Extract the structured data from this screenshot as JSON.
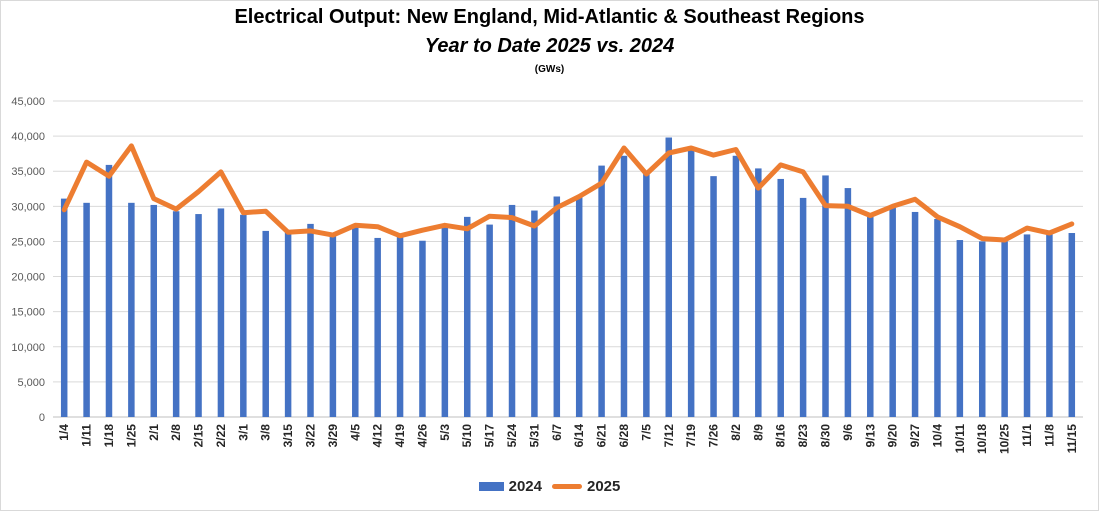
{
  "titles": {
    "main": "Electrical Output:  New England, Mid-Atlantic & Southeast Regions",
    "sub": "Year to Date 2025 vs. 2024",
    "unit": "(GWs)"
  },
  "colors": {
    "series_2024": "#4472C4",
    "series_2025": "#ED7D31",
    "grid": "#d9d9d9"
  },
  "chart_data": {
    "type": "bar",
    "title": "Electrical Output:  New England, Mid-Atlantic & Southeast Regions",
    "subtitle": "Year to Date 2025 vs. 2024",
    "ylabel": "(GWs)",
    "ylim": [
      0,
      45000
    ],
    "yticks": [
      0,
      5000,
      10000,
      15000,
      20000,
      25000,
      30000,
      35000,
      40000,
      45000
    ],
    "ytick_labels": [
      "0",
      "5,000",
      "10,000",
      "15,000",
      "20,000",
      "25,000",
      "30,000",
      "35,000",
      "40,000",
      "45,000"
    ],
    "grid": true,
    "legend_position": "bottom",
    "categories": [
      "1/4",
      "1/11",
      "1/18",
      "1/25",
      "2/1",
      "2/8",
      "2/15",
      "2/22",
      "3/1",
      "3/8",
      "3/15",
      "3/22",
      "3/29",
      "4/5",
      "4/12",
      "4/19",
      "4/26",
      "5/3",
      "5/10",
      "5/17",
      "5/24",
      "5/31",
      "6/7",
      "6/14",
      "6/21",
      "6/28",
      "7/5",
      "7/12",
      "7/19",
      "7/26",
      "8/2",
      "8/9",
      "8/16",
      "8/23",
      "8/30",
      "9/6",
      "9/13",
      "9/20",
      "9/27",
      "10/4",
      "10/11",
      "10/18",
      "10/25",
      "11/1",
      "11/8",
      "11/15"
    ],
    "series": [
      {
        "name": "2024",
        "type": "bar",
        "values": [
          31100,
          30500,
          35900,
          30500,
          30200,
          29300,
          28900,
          29700,
          28800,
          26500,
          26400,
          27500,
          26100,
          27000,
          25500,
          25700,
          25100,
          27200,
          28500,
          27400,
          30200,
          29400,
          31400,
          31300,
          35800,
          37200,
          34800,
          39800,
          38500,
          34300,
          37200,
          35400,
          33900,
          31200,
          34400,
          32600,
          28500,
          30100,
          29200,
          28200,
          25200,
          25000,
          25000,
          26000,
          26000,
          26200
        ]
      },
      {
        "name": "2025",
        "type": "line",
        "values": [
          29500,
          36300,
          34300,
          38600,
          31100,
          29600,
          32100,
          34900,
          29100,
          29300,
          26300,
          26500,
          25900,
          27300,
          27100,
          25800,
          26600,
          27300,
          26800,
          28600,
          28400,
          27200,
          29800,
          31400,
          33300,
          38300,
          34600,
          37600,
          38300,
          37300,
          38100,
          32600,
          35900,
          34900,
          30100,
          30000,
          28700,
          30000,
          31000,
          28500,
          27100,
          25400,
          25200,
          26900,
          26200,
          27500
        ]
      }
    ]
  }
}
